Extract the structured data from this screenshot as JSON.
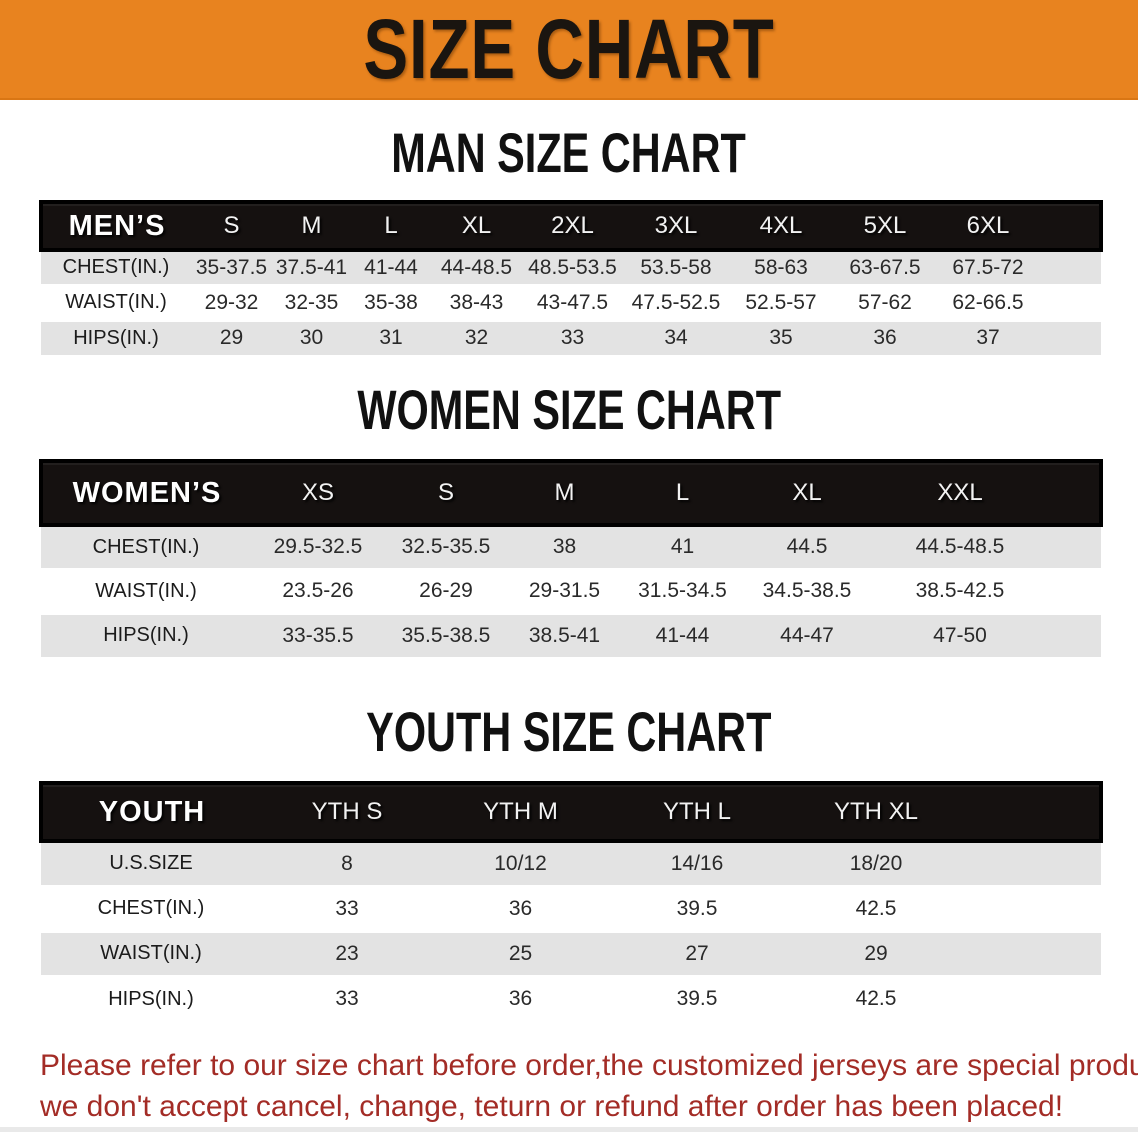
{
  "banner": {
    "title": "SIZE CHART",
    "bg_color": "#E8831F",
    "text_color": "#1A1510"
  },
  "sections": [
    {
      "id": "men",
      "heading": "MAN SIZE CHART",
      "group_label": "MEN’S",
      "columns": [
        "S",
        "M",
        "L",
        "XL",
        "2XL",
        "3XL",
        "4XL",
        "5XL",
        "6XL"
      ],
      "rows": [
        {
          "label": "CHEST(IN.)",
          "values": [
            "35-37.5",
            "37.5-41",
            "41-44",
            "44-48.5",
            "48.5-53.5",
            "53.5-58",
            "58-63",
            "63-67.5",
            "67.5-72"
          ]
        },
        {
          "label": "WAIST(IN.)",
          "values": [
            "29-32",
            "32-35",
            "35-38",
            "38-43",
            "43-47.5",
            "47.5-52.5",
            "52.5-57",
            "57-62",
            "62-66.5"
          ]
        },
        {
          "label": "HIPS(IN.)",
          "values": [
            "29",
            "30",
            "31",
            "32",
            "33",
            "34",
            "35",
            "36",
            "37"
          ]
        }
      ]
    },
    {
      "id": "women",
      "heading": "WOMEN SIZE CHART",
      "group_label": "WOMEN’S",
      "columns": [
        "XS",
        "S",
        "M",
        "L",
        "XL",
        "XXL"
      ],
      "rows": [
        {
          "label": "CHEST(IN.)",
          "values": [
            "29.5-32.5",
            "32.5-35.5",
            "38",
            "41",
            "44.5",
            "44.5-48.5"
          ]
        },
        {
          "label": "WAIST(IN.)",
          "values": [
            "23.5-26",
            "26-29",
            "29-31.5",
            "31.5-34.5",
            "34.5-38.5",
            "38.5-42.5"
          ]
        },
        {
          "label": "HIPS(IN.)",
          "values": [
            "33-35.5",
            "35.5-38.5",
            "38.5-41",
            "41-44",
            "44-47",
            "47-50"
          ]
        }
      ]
    },
    {
      "id": "youth",
      "heading": "YOUTH SIZE CHART",
      "group_label": "YOUTH",
      "columns": [
        "YTH S",
        "YTH M",
        "YTH L",
        "YTH XL"
      ],
      "rows": [
        {
          "label": "U.S.SIZE",
          "values": [
            "8",
            "10/12",
            "14/16",
            "18/20"
          ]
        },
        {
          "label": "CHEST(IN.)",
          "values": [
            "33",
            "36",
            "39.5",
            "42.5"
          ]
        },
        {
          "label": "WAIST(IN.)",
          "values": [
            "23",
            "25",
            "27",
            "29"
          ]
        },
        {
          "label": "HIPS(IN.)",
          "values": [
            "33",
            "36",
            "39.5",
            "42.5"
          ]
        }
      ]
    }
  ],
  "disclaimer": {
    "line1": "Please refer to our size chart before order,the customized jerseys are special products,",
    "line2": "we don't accept cancel, change, teturn or refund after order has been placed!",
    "color": "#A32C26"
  }
}
